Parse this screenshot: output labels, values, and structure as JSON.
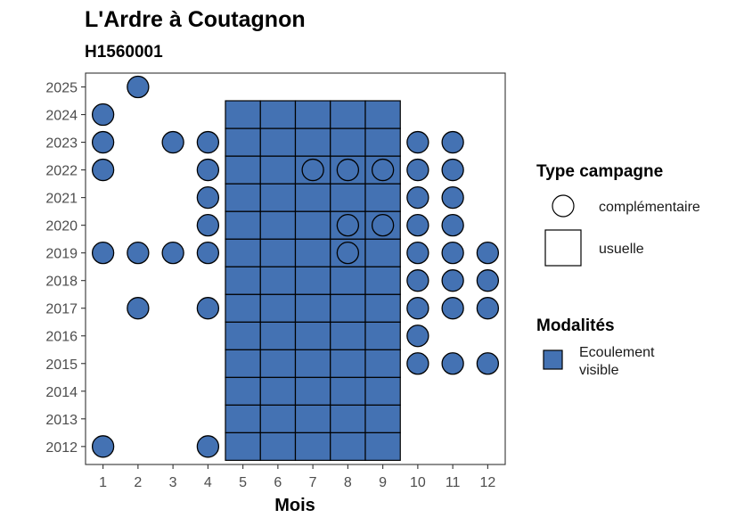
{
  "chart_data": {
    "type": "scatter",
    "title": "L'Ardre à Coutagnon",
    "subtitle": "H1560001",
    "xlabel": "Mois",
    "ylabel": "",
    "x_ticks": [
      1,
      2,
      3,
      4,
      5,
      6,
      7,
      8,
      9,
      10,
      11,
      12
    ],
    "y_ticks": [
      2012,
      2013,
      2014,
      2015,
      2016,
      2017,
      2018,
      2019,
      2020,
      2021,
      2022,
      2023,
      2024,
      2025
    ],
    "xlim": [
      0.5,
      12.5
    ],
    "ylim": [
      2011.35,
      2025.5
    ],
    "fill_color": "#4472b3",
    "usuelle": {
      "months": [
        5,
        6,
        7,
        8,
        9
      ],
      "years": [
        2012,
        2013,
        2014,
        2015,
        2016,
        2017,
        2018,
        2019,
        2020,
        2021,
        2022,
        2023,
        2024
      ]
    },
    "complementaire_filled": [
      {
        "month": 1,
        "years": [
          2012,
          2019,
          2022,
          2023,
          2024
        ]
      },
      {
        "month": 2,
        "years": [
          2017,
          2019,
          2025
        ]
      },
      {
        "month": 3,
        "years": [
          2019,
          2023
        ]
      },
      {
        "month": 4,
        "years": [
          2012,
          2017,
          2019,
          2020,
          2021,
          2022,
          2023
        ]
      },
      {
        "month": 10,
        "years": [
          2015,
          2016,
          2017,
          2018,
          2019,
          2020,
          2021,
          2022,
          2023
        ]
      },
      {
        "month": 11,
        "years": [
          2015,
          2017,
          2018,
          2019,
          2020,
          2021,
          2022,
          2023
        ]
      },
      {
        "month": 12,
        "years": [
          2015,
          2017,
          2018,
          2019
        ]
      }
    ],
    "complementaire_empty": [
      {
        "month": 7,
        "year": 2022
      },
      {
        "month": 8,
        "year": 2022
      },
      {
        "month": 9,
        "year": 2022
      },
      {
        "month": 8,
        "year": 2020
      },
      {
        "month": 9,
        "year": 2020
      },
      {
        "month": 8,
        "year": 2019
      }
    ],
    "legend": {
      "type_title": "Type campagne",
      "type_items": [
        "complémentaire",
        "usuelle"
      ],
      "modalites_title": "Modalités",
      "modalites_line1": "Ecoulement",
      "modalites_line2": "visible"
    }
  }
}
